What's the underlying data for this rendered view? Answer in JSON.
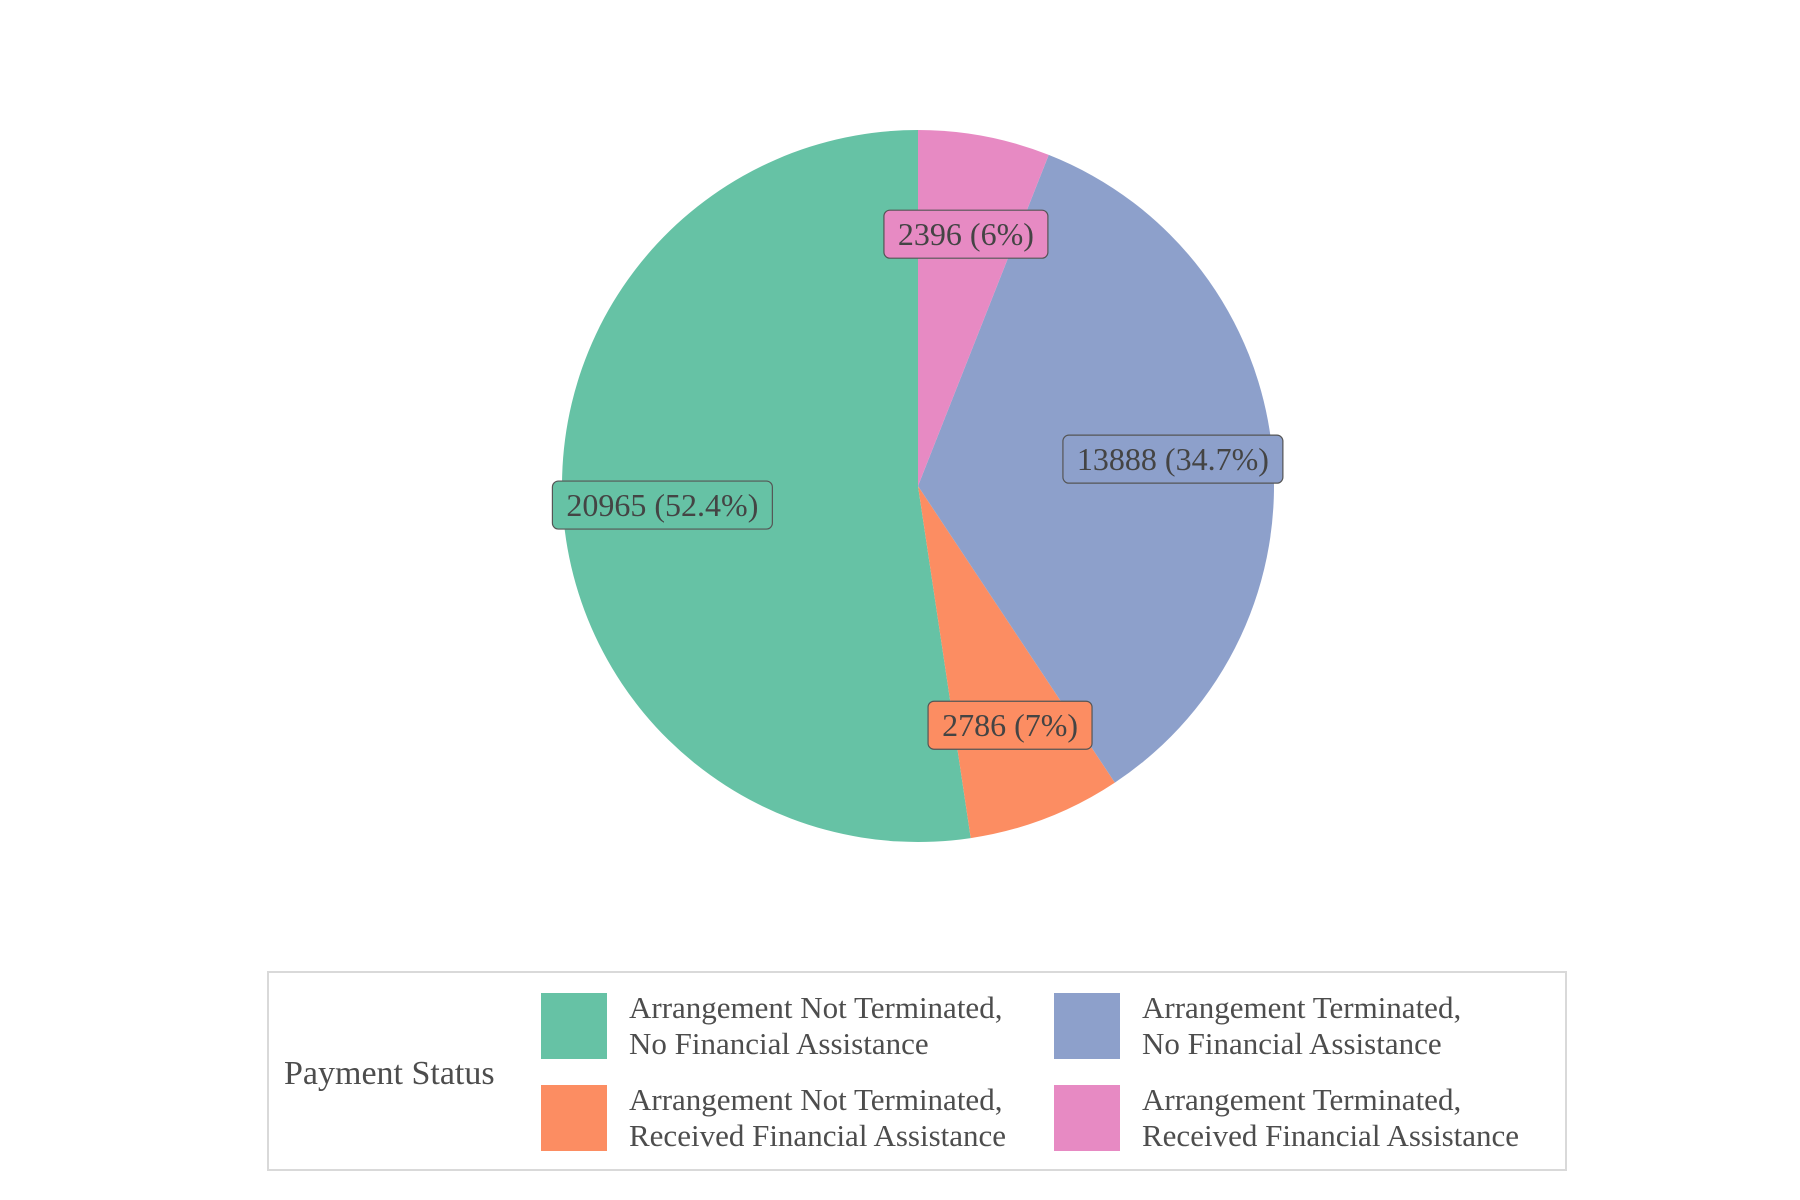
{
  "chart_data": {
    "type": "pie",
    "title": "",
    "legend": {
      "title": "Payment Status",
      "placement": "bottom"
    },
    "slices": [
      {
        "name": "Arrangement Not Terminated, No Financial Assistance",
        "legend_lines": [
          "Arrangement Not Terminated,",
          "No Financial Assistance"
        ],
        "value": 20965,
        "percent": 52.4,
        "label": "20965 (52.4%)",
        "color": "#66c2a5"
      },
      {
        "name": "Arrangement Not Terminated, Received Financial Assistance",
        "legend_lines": [
          "Arrangement Not Terminated,",
          "Received Financial Assistance"
        ],
        "value": 2786,
        "percent": 7,
        "label": "2786 (7%)",
        "color": "#fc8d62"
      },
      {
        "name": "Arrangement Terminated, No Financial Assistance",
        "legend_lines": [
          "Arrangement Terminated,",
          "No Financial Assistance"
        ],
        "value": 13888,
        "percent": 34.7,
        "label": "13888 (34.7%)",
        "color": "#8da0cb"
      },
      {
        "name": "Arrangement Terminated, Received Financial Assistance",
        "legend_lines": [
          "Arrangement Terminated,",
          "Received Financial Assistance"
        ],
        "value": 2396,
        "percent": 6,
        "label": "2396 (6%)",
        "color": "#e78ac3"
      }
    ]
  }
}
